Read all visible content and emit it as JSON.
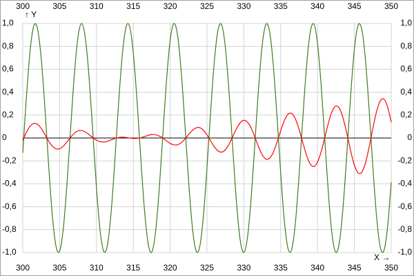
{
  "chart_data": {
    "type": "line",
    "x_label": "X →",
    "y_label": "↑ Y",
    "x": [
      300,
      300.5,
      301,
      301.5,
      302,
      302.5,
      303,
      303.5,
      304,
      304.5,
      305,
      305.5,
      306,
      306.5,
      307,
      307.5,
      308,
      308.5,
      309,
      309.5,
      310,
      310.5,
      311,
      311.5,
      312,
      312.5,
      313,
      313.5,
      314,
      314.5,
      315,
      315.5,
      316,
      316.5,
      317,
      317.5,
      318,
      318.5,
      319,
      319.5,
      320,
      320.5,
      321,
      321.5,
      322,
      322.5,
      323,
      323.5,
      324,
      324.5,
      325,
      325.5,
      326,
      326.5,
      327,
      327.5,
      328,
      328.5,
      329,
      329.5,
      330,
      330.5,
      331,
      331.5,
      332,
      332.5,
      333,
      333.5,
      334,
      334.5,
      335,
      335.5,
      336,
      336.5,
      337,
      337.5,
      338,
      338.5,
      339,
      339.5,
      340,
      340.5,
      341,
      341.5,
      342,
      342.5,
      343,
      343.5,
      344,
      344.5,
      345,
      345.5,
      346,
      346.5,
      347,
      347.5,
      348,
      348.5,
      349,
      349.5,
      350
    ],
    "series": [
      {
        "color": "#3f7a1e",
        "values": [
          -0.129,
          0.362,
          0.765,
          0.98,
          0.955,
          0.697,
          0.268,
          -0.227,
          -0.666,
          -0.942,
          -0.988,
          -0.791,
          -0.401,
          0.088,
          0.554,
          0.886,
          1.0,
          0.869,
          0.527,
          0.054,
          -0.431,
          -0.812,
          -0.992,
          -0.93,
          -0.641,
          -0.194,
          0.3,
          0.721,
          0.965,
          0.973,
          0.743,
          0.331,
          -0.162,
          -0.615,
          -0.918,
          -0.996,
          -0.83,
          -0.461,
          0.021,
          0.498,
          0.853,
          0.999,
          0.9,
          0.581,
          0.12,
          -0.371,
          -0.771,
          -0.982,
          -0.953,
          -0.69,
          -0.259,
          0.236,
          0.673,
          0.945,
          0.986,
          0.786,
          0.393,
          -0.096,
          -0.562,
          -0.89,
          -1.0,
          -0.865,
          -0.518,
          -0.045,
          0.44,
          0.816,
          0.993,
          0.927,
          0.634,
          0.186,
          -0.308,
          -0.727,
          -0.967,
          -0.971,
          -0.737,
          -0.322,
          0.171,
          0.622,
          0.921,
          0.995,
          0.825,
          0.453,
          -0.03,
          -0.506,
          -0.857,
          -0.999,
          -0.896,
          -0.574,
          -0.111,
          0.379,
          0.776,
          0.983,
          0.95,
          0.684,
          0.251,
          -0.245,
          -0.679,
          -0.948,
          -0.985,
          -0.78,
          -0.385
        ]
      },
      {
        "color": "#ff0000",
        "values": [
          -0.019,
          0.051,
          0.103,
          0.127,
          0.119,
          0.084,
          0.031,
          -0.025,
          -0.07,
          -0.094,
          -0.094,
          -0.071,
          -0.034,
          0.007,
          0.042,
          0.062,
          0.065,
          0.052,
          0.029,
          0.003,
          -0.019,
          -0.032,
          -0.035,
          -0.028,
          -0.016,
          -0.004,
          0.004,
          0.007,
          0.005,
          0,
          -0.004,
          -0.003,
          0.002,
          0.012,
          0.023,
          0.03,
          0.029,
          0.018,
          -0.001,
          -0.025,
          -0.047,
          -0.06,
          -0.059,
          -0.041,
          -0.009,
          0.03,
          0.065,
          0.088,
          0.091,
          0.069,
          0.027,
          -0.026,
          -0.077,
          -0.113,
          -0.123,
          -0.102,
          -0.053,
          0.013,
          0.081,
          0.133,
          0.155,
          0.138,
          0.086,
          0.008,
          -0.077,
          -0.147,
          -0.184,
          -0.176,
          -0.124,
          -0.037,
          0.063,
          0.153,
          0.208,
          0.214,
          0.166,
          0.074,
          -0.04,
          -0.149,
          -0.226,
          -0.249,
          -0.21,
          -0.118,
          0.008,
          0.137,
          0.236,
          0.28,
          0.255,
          0.166,
          0.033,
          -0.114,
          -0.237,
          -0.305,
          -0.299,
          -0.219,
          -0.081,
          0.081,
          0.228,
          0.322,
          0.34,
          0.273,
          0.137
        ]
      }
    ],
    "xlim": [
      300,
      350
    ],
    "xticks": [
      300,
      305,
      310,
      315,
      320,
      325,
      330,
      335,
      340,
      345,
      350
    ],
    "ylim": [
      -1,
      1
    ],
    "yticks": [
      {
        "value": 1,
        "label": "1,0"
      },
      {
        "value": 0.8,
        "label": "0,8"
      },
      {
        "value": 0.6,
        "label": "0,6"
      },
      {
        "value": 0.4,
        "label": "0,4"
      },
      {
        "value": 0.2,
        "label": "0,2"
      },
      0,
      {
        "value": -0.2,
        "label": "-0,2"
      },
      {
        "value": -0.4,
        "label": "-0,4"
      },
      {
        "value": -0.6,
        "label": "-0,6"
      },
      {
        "value": -0.8,
        "label": "-0,8"
      },
      {
        "value": -1,
        "label": "-1,0"
      }
    ],
    "grid": true
  }
}
